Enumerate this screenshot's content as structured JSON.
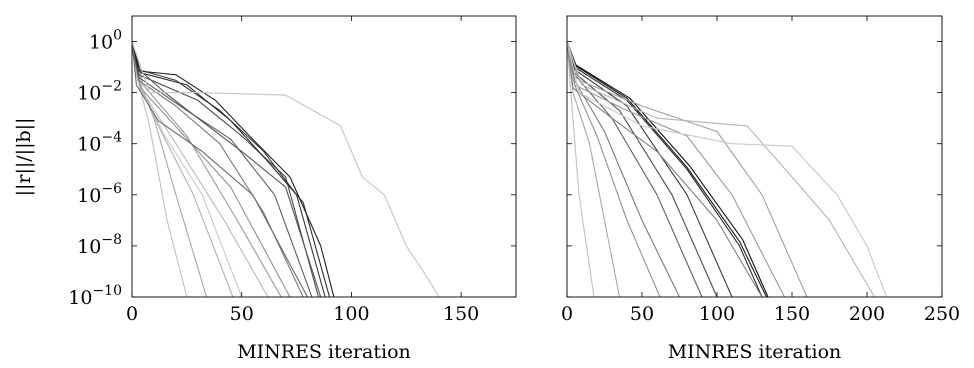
{
  "chart_data": [
    {
      "type": "line",
      "title": "",
      "xlabel": "MINRES iteration",
      "ylabel": "||r||/||b||",
      "xlim": [
        0,
        175
      ],
      "ylim": [
        1e-10,
        10
      ],
      "yscale": "log",
      "xticks": [
        0,
        50,
        100,
        150
      ],
      "yticks": [
        {
          "value": 1,
          "base": "10",
          "exp": "0"
        },
        {
          "value": 0.01,
          "base": "10",
          "exp": "−2"
        },
        {
          "value": 0.0001,
          "base": "10",
          "exp": "−4"
        },
        {
          "value": 1e-06,
          "base": "10",
          "exp": "−6"
        },
        {
          "value": 1e-08,
          "base": "10",
          "exp": "−8"
        },
        {
          "value": 1e-10,
          "base": "10",
          "exp": "−10"
        }
      ],
      "series": [
        {
          "color": "#c0c0c0",
          "x": [
            0,
            2,
            8,
            16,
            25
          ],
          "y": [
            1,
            0.05,
            0.0005,
            1e-07,
            1e-10
          ]
        },
        {
          "color": "#a8a8a8",
          "x": [
            0,
            2,
            10,
            20,
            34
          ],
          "y": [
            1,
            0.05,
            0.001,
            1e-06,
            1e-10
          ]
        },
        {
          "color": "#b0b0b0",
          "x": [
            0,
            3,
            12,
            28,
            46
          ],
          "y": [
            1,
            0.03,
            0.0005,
            1e-06,
            1e-10
          ]
        },
        {
          "color": "#c8c8c8",
          "x": [
            0,
            3,
            15,
            32,
            50
          ],
          "y": [
            1,
            0.02,
            0.0002,
            1e-06,
            1e-10
          ]
        },
        {
          "color": "#bbbbbb",
          "x": [
            0,
            5,
            20,
            42,
            62
          ],
          "y": [
            1,
            0.01,
            0.0001,
            1e-07,
            1e-10
          ]
        },
        {
          "color": "#999999",
          "x": [
            0,
            5,
            25,
            48,
            68
          ],
          "y": [
            1,
            0.02,
            0.0002,
            1e-07,
            1e-10
          ]
        },
        {
          "color": "#909090",
          "x": [
            0,
            4,
            22,
            45,
            72
          ],
          "y": [
            1,
            0.015,
            0.0003,
            2e-06,
            1e-10
          ]
        },
        {
          "color": "#7a7a7a",
          "x": [
            0,
            3,
            20,
            40,
            60,
            78
          ],
          "y": [
            1,
            0.03,
            0.003,
            0.0001,
            2e-07,
            1e-10
          ]
        },
        {
          "color": "#5e5e5e",
          "x": [
            0,
            3,
            25,
            45,
            65,
            82
          ],
          "y": [
            1,
            0.04,
            0.002,
            0.00015,
            1e-06,
            1e-10
          ]
        },
        {
          "color": "#4a4a4a",
          "x": [
            0,
            3,
            30,
            50,
            70,
            85
          ],
          "y": [
            1,
            0.05,
            0.005,
            0.0002,
            5e-06,
            1e-10
          ]
        },
        {
          "color": "#3a3a3a",
          "x": [
            0,
            3,
            20,
            40,
            60,
            75,
            88
          ],
          "y": [
            1,
            0.08,
            0.03,
            0.002,
            5e-05,
            1e-06,
            1e-10
          ]
        },
        {
          "color": "#2e2e2e",
          "x": [
            0,
            4,
            25,
            45,
            62,
            78,
            90
          ],
          "y": [
            1,
            0.06,
            0.02,
            0.0008,
            2e-05,
            5e-07,
            1e-10
          ]
        },
        {
          "color": "#222222",
          "x": [
            0,
            3,
            20,
            38,
            55,
            72,
            86,
            92
          ],
          "y": [
            1,
            0.07,
            0.05,
            0.005,
            0.00015,
            5e-06,
            1e-08,
            1e-10
          ]
        },
        {
          "color": "#555555",
          "x": [
            0,
            2,
            15,
            30,
            50,
            70,
            86
          ],
          "y": [
            1,
            0.1,
            0.01,
            0.001,
            5e-05,
            2e-06,
            1e-10
          ]
        },
        {
          "color": "#6a6a6a",
          "x": [
            0,
            2,
            12,
            32,
            55,
            80
          ],
          "y": [
            1,
            0.02,
            0.0008,
            5e-05,
            1e-06,
            1e-10
          ]
        },
        {
          "color": "#c4c4c4",
          "x": [
            0,
            8,
            30,
            70,
            95,
            105,
            115,
            125,
            135,
            140
          ],
          "y": [
            1,
            0.01,
            0.01,
            0.008,
            0.0005,
            5e-06,
            1e-06,
            1e-08,
            5e-10,
            1e-10
          ]
        }
      ]
    },
    {
      "type": "line",
      "title": "",
      "xlabel": "MINRES iteration",
      "ylabel": "",
      "xlim": [
        0,
        250
      ],
      "ylim": [
        1e-10,
        10
      ],
      "yscale": "log",
      "xticks": [
        0,
        50,
        100,
        150,
        200,
        250
      ],
      "series": [
        {
          "color": "#c0c0c0",
          "x": [
            0,
            3,
            8,
            18
          ],
          "y": [
            1,
            0.005,
            1e-06,
            1e-10
          ]
        },
        {
          "color": "#a8a8a8",
          "x": [
            0,
            4,
            15,
            35
          ],
          "y": [
            1,
            0.01,
            0.0001,
            1e-10
          ]
        },
        {
          "color": "#909090",
          "x": [
            0,
            5,
            20,
            40,
            62
          ],
          "y": [
            1,
            0.02,
            0.0002,
            1e-07,
            1e-10
          ]
        },
        {
          "color": "#7a7a7a",
          "x": [
            0,
            5,
            25,
            50,
            75
          ],
          "y": [
            1,
            0.03,
            0.0003,
            1e-07,
            1e-10
          ]
        },
        {
          "color": "#5e5e5e",
          "x": [
            0,
            5,
            30,
            60,
            90
          ],
          "y": [
            1,
            0.05,
            0.001,
            1e-06,
            1e-10
          ]
        },
        {
          "color": "#4a4a4a",
          "x": [
            0,
            5,
            35,
            70,
            100
          ],
          "y": [
            1,
            0.06,
            0.002,
            1e-06,
            1e-10
          ]
        },
        {
          "color": "#3a3a3a",
          "x": [
            0,
            5,
            40,
            80,
            110
          ],
          "y": [
            1,
            0.08,
            0.003,
            1e-06,
            1e-10
          ]
        },
        {
          "color": "#2a2a2a",
          "x": [
            0,
            5,
            40,
            80,
            115,
            130
          ],
          "y": [
            1,
            0.1,
            0.005,
            1e-05,
            1e-08,
            1e-10
          ]
        },
        {
          "color": "#1a1a1a",
          "x": [
            0,
            5,
            40,
            80,
            115,
            133
          ],
          "y": [
            1,
            0.12,
            0.006,
            1.2e-05,
            1.5e-08,
            1e-10
          ]
        },
        {
          "color": "#111111",
          "x": [
            0,
            6,
            42,
            82,
            117,
            134
          ],
          "y": [
            1,
            0.12,
            0.006,
            1.3e-05,
            1.8e-08,
            1e-10
          ]
        },
        {
          "color": "#808080",
          "x": [
            0,
            4,
            30,
            60,
            100,
            130
          ],
          "y": [
            1,
            0.015,
            0.001,
            5e-05,
            1e-07,
            1e-10
          ]
        },
        {
          "color": "#999999",
          "x": [
            0,
            5,
            40,
            80,
            110,
            145
          ],
          "y": [
            1,
            0.02,
            0.002,
            0.0002,
            1e-06,
            1e-10
          ]
        },
        {
          "color": "#a0a0a0",
          "x": [
            0,
            8,
            50,
            100,
            130,
            160
          ],
          "y": [
            1,
            0.03,
            0.003,
            0.0003,
            1e-06,
            1e-10
          ]
        },
        {
          "color": "#b4b4b4",
          "x": [
            0,
            10,
            60,
            120,
            150,
            175,
            205
          ],
          "y": [
            1,
            0.02,
            0.001,
            0.0005,
            5e-06,
            1e-07,
            1e-10
          ]
        },
        {
          "color": "#c8c8c8",
          "x": [
            0,
            8,
            50,
            110,
            150,
            180,
            200,
            213
          ],
          "y": [
            1,
            0.01,
            0.0005,
            0.0001,
            8e-05,
            1e-06,
            1e-08,
            1e-10
          ]
        }
      ]
    }
  ]
}
